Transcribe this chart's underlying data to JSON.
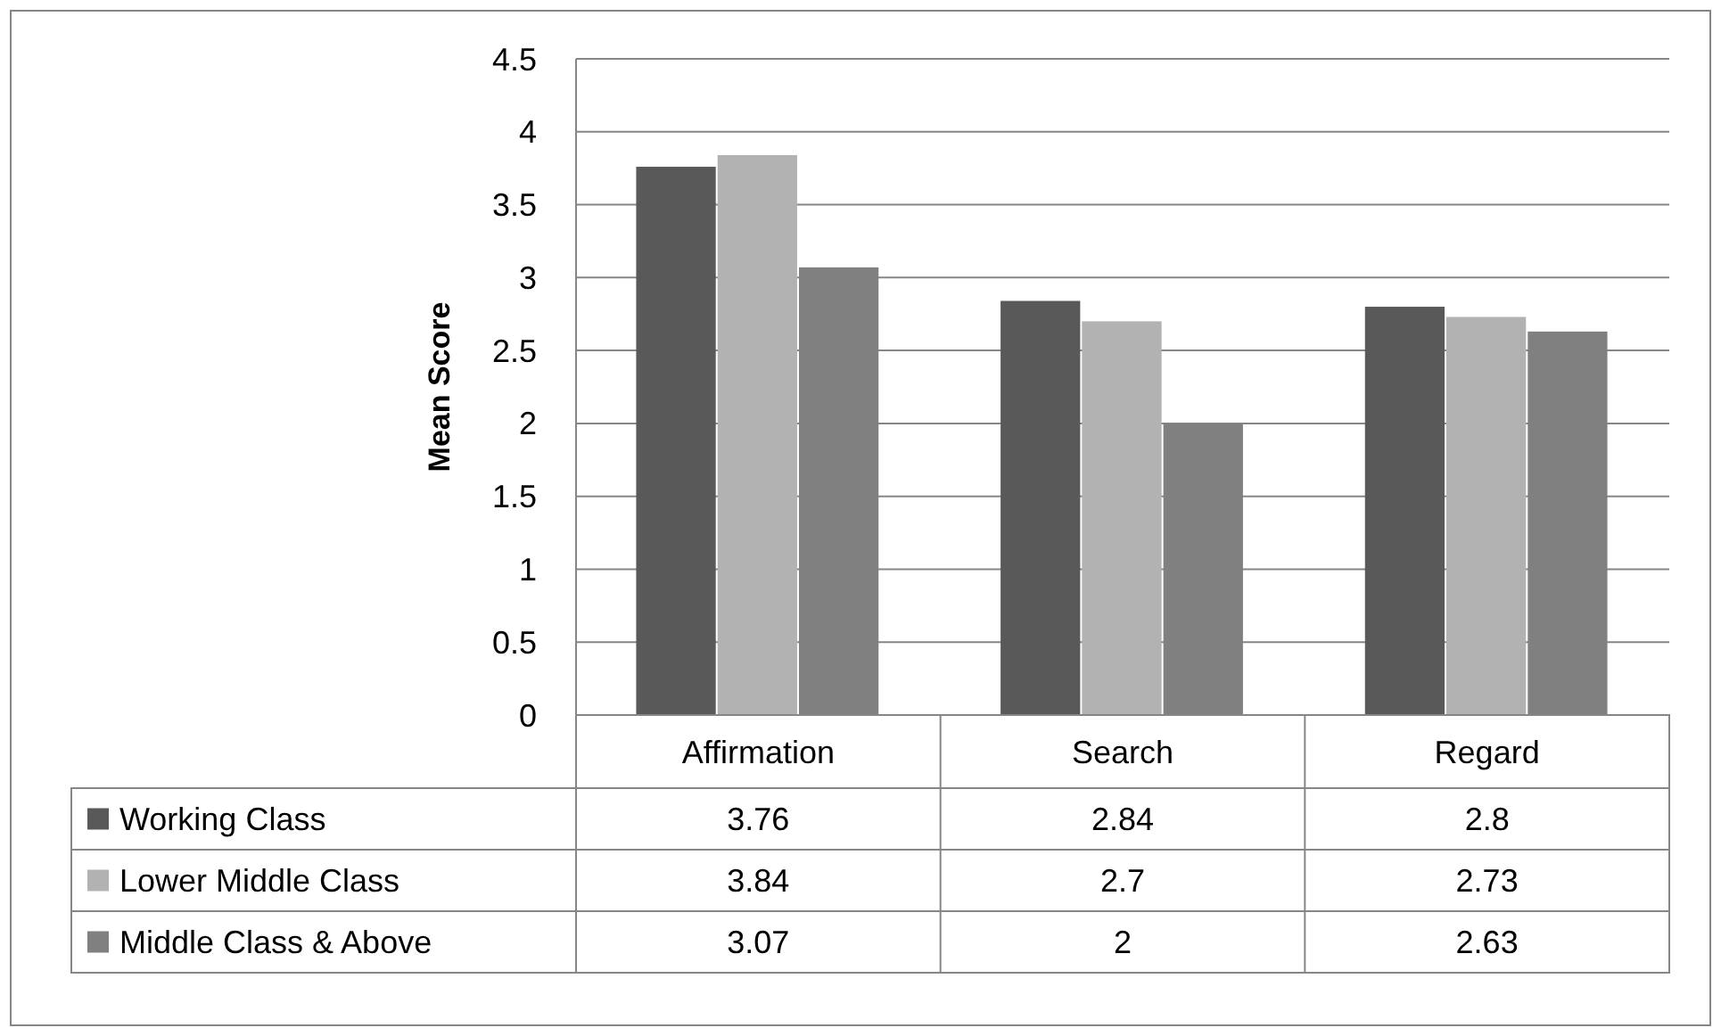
{
  "chart_data": {
    "type": "bar",
    "ylabel": "Mean Score",
    "categories": [
      "Affirmation",
      "Search",
      "Regard"
    ],
    "series": [
      {
        "name": "Working Class",
        "color": "#595959",
        "values": [
          3.76,
          2.84,
          2.8
        ]
      },
      {
        "name": "Lower Middle Class",
        "color": "#b2b2b2",
        "values": [
          3.84,
          2.7,
          2.73
        ]
      },
      {
        "name": "Middle Class & Above",
        "color": "#808080",
        "values": [
          3.07,
          2,
          2.63
        ]
      }
    ],
    "ylim": [
      0,
      4.5
    ],
    "yticks": [
      0,
      0.5,
      1,
      1.5,
      2,
      2.5,
      3,
      3.5,
      4,
      4.5
    ],
    "grid": "y",
    "legend": "bottom",
    "data_labels": true
  }
}
